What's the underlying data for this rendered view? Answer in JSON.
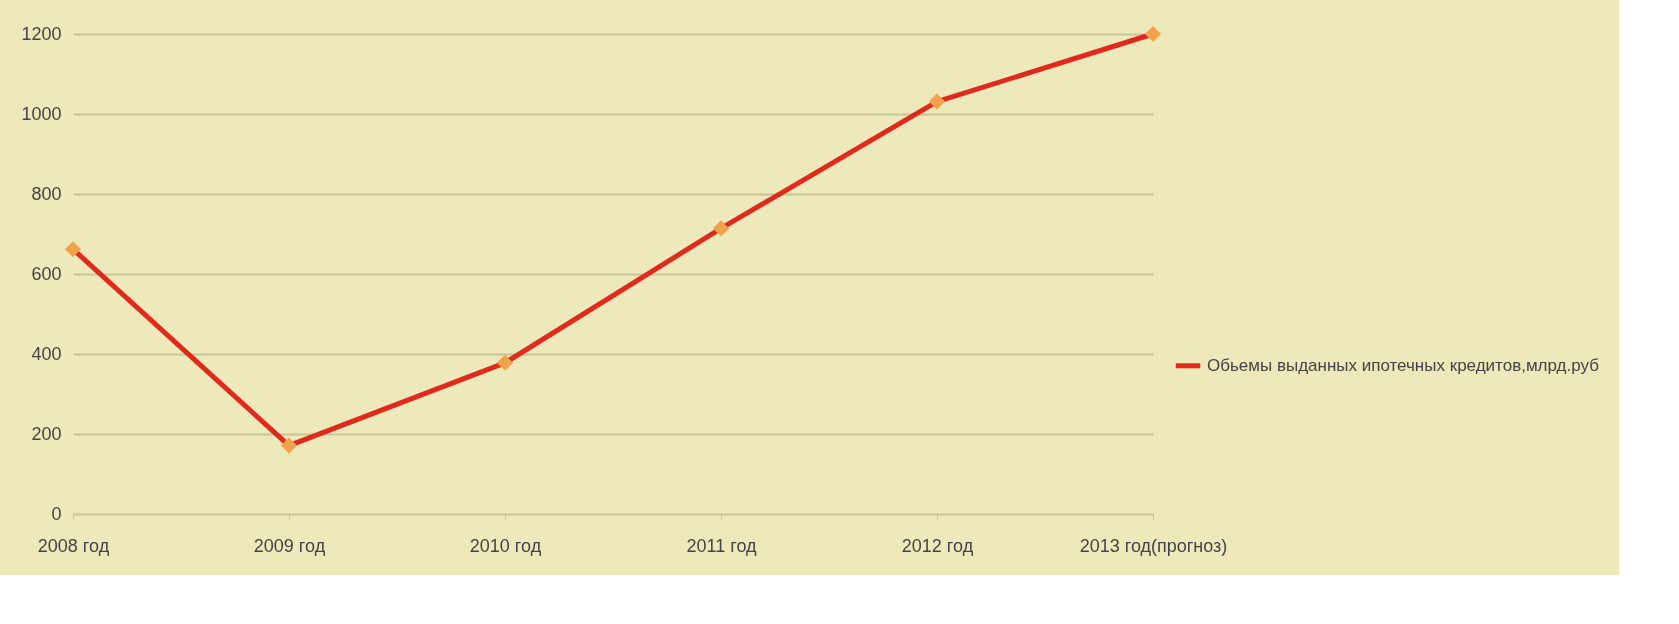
{
  "chart_data": {
    "type": "line",
    "categories": [
      "2008 год",
      "2009 год",
      "2010 год",
      "2011 год",
      "2012 год",
      "2013 год(прогноз)"
    ],
    "series": [
      {
        "name": "Обьемы выданных ипотечных кредитов,млрд.руб",
        "color": "#e02a1c",
        "values": [
          662,
          171,
          378,
          714,
          1031,
          1200
        ]
      }
    ],
    "ylim": [
      0,
      1200
    ],
    "yticks": [
      0,
      200,
      400,
      600,
      800,
      1000,
      1200
    ],
    "grid": "y",
    "legend": "right",
    "marker": "diamond",
    "line_style": "solid"
  }
}
